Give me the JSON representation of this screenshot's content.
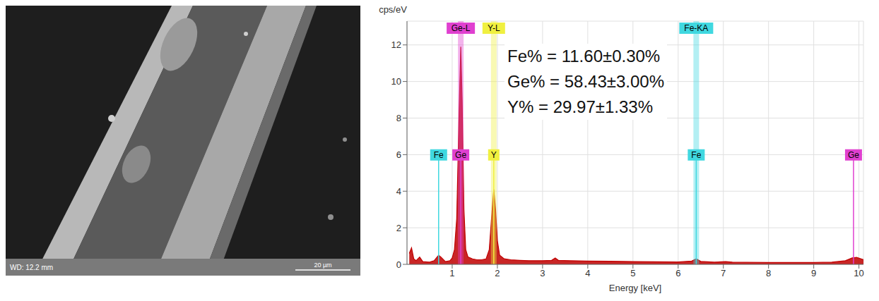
{
  "sem_image": {
    "labels": [
      "WD: 12.2 mm"
    ],
    "scale_bar": "20 µm"
  },
  "chart_data": {
    "type": "area",
    "y_label": "cps/eV",
    "x_label": "Energy [keV]",
    "x": [
      0.05,
      0.1,
      0.15,
      0.2,
      0.28,
      0.35,
      0.5,
      0.6,
      0.65,
      0.7,
      0.75,
      0.85,
      0.95,
      1.0,
      1.05,
      1.1,
      1.15,
      1.19,
      1.22,
      1.26,
      1.3,
      1.35,
      1.45,
      1.55,
      1.65,
      1.75,
      1.82,
      1.87,
      1.92,
      1.96,
      2.0,
      2.05,
      2.15,
      2.3,
      2.5,
      2.7,
      3.0,
      3.2,
      3.28,
      3.35,
      3.6,
      4.0,
      4.5,
      5.0,
      5.5,
      6.0,
      6.3,
      6.4,
      6.5,
      6.8,
      7.05,
      7.2,
      7.5,
      8.0,
      8.5,
      9.0,
      9.4,
      9.7,
      9.85,
      9.95,
      10.05,
      10.1
    ],
    "values": [
      0.6,
      0.9,
      0.3,
      0.2,
      0.4,
      0.15,
      0.12,
      0.2,
      0.35,
      0.5,
      0.4,
      0.15,
      0.2,
      0.35,
      0.8,
      2.5,
      8.0,
      11.9,
      9.0,
      3.0,
      0.8,
      0.4,
      0.3,
      0.25,
      0.25,
      0.3,
      0.8,
      2.5,
      4.1,
      3.0,
      1.3,
      0.5,
      0.3,
      0.25,
      0.22,
      0.2,
      0.2,
      0.22,
      0.35,
      0.22,
      0.2,
      0.18,
      0.17,
      0.15,
      0.14,
      0.13,
      0.18,
      0.3,
      0.16,
      0.12,
      0.15,
      0.12,
      0.11,
      0.1,
      0.1,
      0.1,
      0.12,
      0.2,
      0.35,
      0.38,
      0.3,
      0.25
    ],
    "color": "#c00000",
    "xlim": [
      0,
      10.1
    ],
    "ylim": [
      0,
      13.3
    ],
    "xticks": [
      1,
      2,
      3,
      4,
      5,
      6,
      7,
      8,
      9,
      10
    ],
    "yticks": [
      0,
      2,
      4,
      6,
      8,
      10,
      12
    ],
    "grid": true,
    "annotations": [
      "Fe% = 11.60±0.30%",
      "Ge% = 58.43±3.00%",
      "Y% = 29.97±1.33%"
    ],
    "peak_labels": [
      {
        "label": "Ge-L",
        "x": 1.19,
        "color": "#e040d0"
      },
      {
        "label": "Y-L",
        "x": 1.92,
        "color": "#f0f040"
      },
      {
        "label": "Fe-KA",
        "x": 6.4,
        "color": "#40d8e0"
      }
    ],
    "element_lines": [
      {
        "label": "Fe",
        "x": 0.7,
        "color": "#40d8e0"
      },
      {
        "label": "Ge",
        "x": 1.19,
        "color": "#e040d0"
      },
      {
        "label": "Y",
        "x": 1.92,
        "color": "#f0f040"
      },
      {
        "label": "Fe",
        "x": 6.4,
        "color": "#40d8e0"
      },
      {
        "label": "Ge",
        "x": 9.88,
        "color": "#e040d0"
      }
    ]
  }
}
